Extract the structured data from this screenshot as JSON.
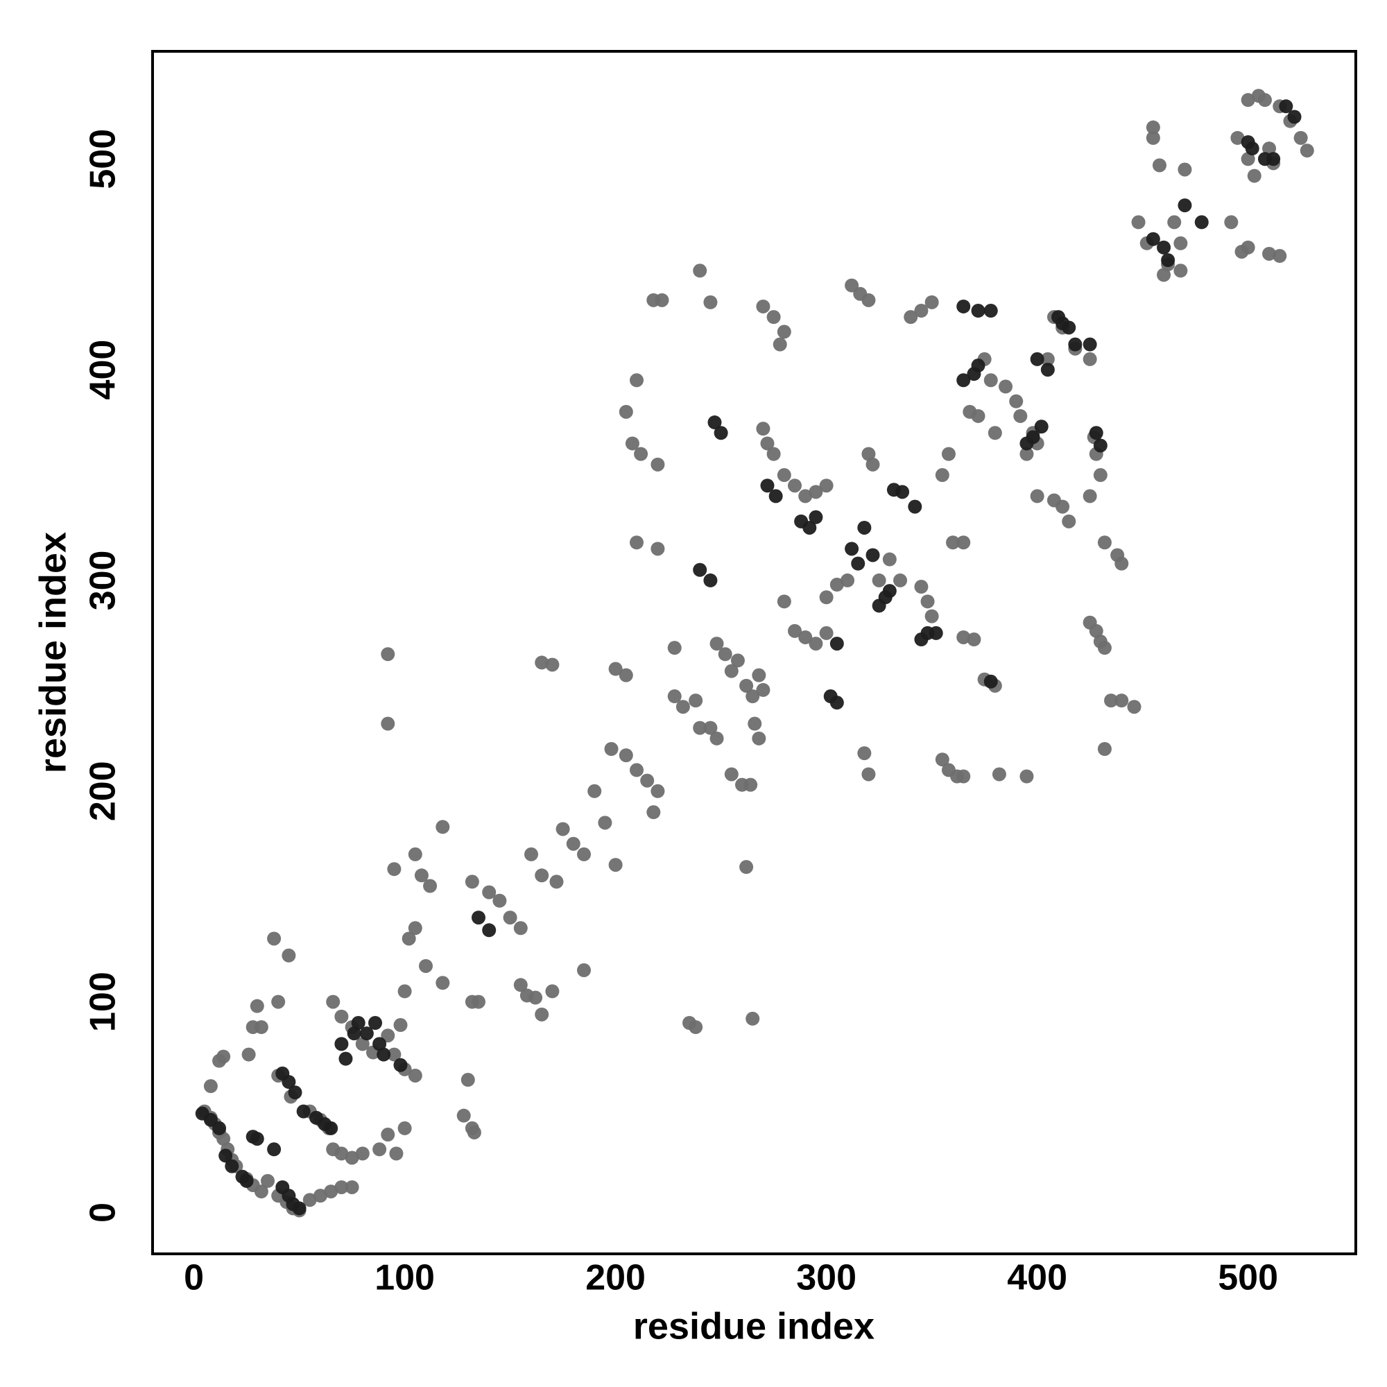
{
  "chart_data": {
    "type": "scatter",
    "xlabel": "residue index",
    "ylabel": "residue index",
    "xlim": [
      -19.6,
      551.1
    ],
    "ylim": [
      -19.6,
      551.1
    ],
    "xticks": [
      0,
      100,
      200,
      300,
      400,
      500
    ],
    "yticks": [
      0,
      100,
      200,
      300,
      400,
      500
    ],
    "series": [
      {
        "color": "#6e6e6e",
        "x": [
          5,
          8,
          10,
          12,
          14,
          16,
          18,
          20,
          25,
          28,
          32,
          35,
          40,
          44,
          47,
          50,
          55,
          60,
          65,
          70,
          75,
          8,
          12,
          14,
          26,
          28,
          32,
          30,
          40,
          38,
          45,
          40,
          46,
          55,
          60,
          64,
          66,
          70,
          75,
          80,
          88,
          92,
          96,
          100,
          100,
          105,
          66,
          70,
          75,
          80,
          85,
          92,
          95,
          98,
          92,
          92,
          100,
          102,
          105,
          108,
          112,
          105,
          110,
          118,
          118,
          95,
          128,
          132,
          133,
          130,
          132,
          135,
          132,
          140,
          145,
          150,
          155,
          155,
          158,
          162,
          165,
          170,
          160,
          165,
          172,
          165,
          170,
          175,
          180,
          185,
          185,
          190,
          195,
          198,
          200,
          205,
          210,
          215,
          220,
          218,
          205,
          208,
          210,
          212,
          220,
          220,
          222,
          218,
          210,
          200,
          205,
          228,
          228,
          232,
          238,
          240,
          245,
          248,
          240,
          245,
          248,
          252,
          255,
          258,
          262,
          265,
          268,
          270,
          255,
          260,
          264,
          262,
          266,
          268,
          235,
          238,
          265,
          270,
          272,
          275,
          270,
          275,
          280,
          278,
          280,
          285,
          290,
          295,
          300,
          280,
          285,
          290,
          295,
          300,
          300,
          305,
          310,
          312,
          316,
          320,
          318,
          320,
          320,
          322,
          325,
          330,
          335,
          345,
          350,
          348,
          355,
          358,
          362,
          365,
          365,
          370,
          375,
          380,
          382,
          395,
          340,
          345,
          350,
          355,
          358,
          360,
          365,
          368,
          372,
          375,
          378,
          380,
          385,
          390,
          392,
          398,
          395,
          400,
          400,
          408,
          412,
          415,
          405,
          408,
          412,
          418,
          425,
          425,
          428,
          430,
          432,
          425,
          430,
          432,
          438,
          440,
          432,
          435,
          440,
          446,
          427,
          428,
          448,
          452,
          455,
          455,
          458,
          460,
          462,
          465,
          468,
          470,
          468,
          492,
          497,
          500,
          495,
          500,
          503,
          510,
          512,
          500,
          505,
          508,
          515,
          520,
          525,
          528,
          510,
          515
        ],
        "y": [
          48,
          45,
          42,
          38,
          35,
          30,
          25,
          22,
          16,
          13,
          10,
          15,
          8,
          5,
          2,
          1,
          6,
          8,
          10,
          12,
          12,
          60,
          72,
          74,
          75,
          88,
          88,
          98,
          100,
          130,
          122,
          65,
          55,
          48,
          44,
          40,
          30,
          28,
          26,
          28,
          30,
          37,
          28,
          40,
          68,
          65,
          100,
          93,
          88,
          80,
          76,
          84,
          75,
          89,
          232,
          265,
          105,
          130,
          135,
          160,
          155,
          170,
          117,
          109,
          183,
          163,
          46,
          40,
          38,
          63,
          100,
          100,
          157,
          152,
          148,
          140,
          135,
          108,
          103,
          102,
          94,
          105,
          170,
          160,
          157,
          261,
          260,
          182,
          175,
          115,
          170,
          200,
          185,
          220,
          165,
          217,
          210,
          205,
          200,
          190,
          380,
          365,
          318,
          360,
          355,
          315,
          433,
          433,
          395,
          258,
          255,
          268,
          245,
          240,
          243,
          230,
          230,
          225,
          447,
          432,
          270,
          265,
          257,
          262,
          250,
          245,
          255,
          248,
          208,
          203,
          203,
          164,
          232,
          225,
          90,
          88,
          92,
          372,
          365,
          360,
          430,
          425,
          418,
          412,
          350,
          345,
          340,
          342,
          345,
          290,
          276,
          273,
          270,
          275,
          292,
          298,
          300,
          440,
          436,
          433,
          218,
          208,
          360,
          355,
          300,
          310,
          300,
          297,
          283,
          290,
          215,
          210,
          207,
          207,
          273,
          272,
          253,
          250,
          208,
          207,
          425,
          428,
          432,
          350,
          360,
          318,
          318,
          380,
          378,
          405,
          395,
          370,
          392,
          385,
          378,
          370,
          360,
          365,
          340,
          338,
          335,
          328,
          405,
          425,
          420,
          410,
          405,
          280,
          276,
          271,
          268,
          340,
          350,
          318,
          312,
          308,
          220,
          243,
          243,
          240,
          368,
          360,
          470,
          460,
          510,
          515,
          497,
          445,
          450,
          470,
          447,
          495,
          460,
          470,
          456,
          458,
          510,
          500,
          492,
          505,
          498,
          528,
          530,
          528,
          525,
          518,
          510,
          504,
          455,
          454
        ]
      },
      {
        "color": "#1e1e1e",
        "x": [
          4,
          8,
          12,
          15,
          18,
          23,
          25,
          28,
          30,
          38,
          42,
          45,
          47,
          50,
          42,
          45,
          48,
          52,
          58,
          62,
          65,
          70,
          72,
          76,
          78,
          82,
          86,
          88,
          90,
          98,
          135,
          140,
          247,
          250,
          240,
          245,
          272,
          276,
          288,
          292,
          295,
          305,
          302,
          305,
          312,
          315,
          318,
          322,
          325,
          328,
          330,
          332,
          336,
          342,
          345,
          348,
          352,
          365,
          370,
          372,
          365,
          372,
          378,
          378,
          395,
          398,
          402,
          400,
          405,
          410,
          412,
          415,
          418,
          425,
          428,
          430,
          455,
          460,
          462,
          470,
          478,
          500,
          502,
          508,
          512,
          518,
          522
        ],
        "y": [
          47,
          44,
          40,
          27,
          22,
          17,
          15,
          36,
          35,
          30,
          12,
          8,
          4,
          2,
          66,
          62,
          57,
          48,
          45,
          42,
          40,
          80,
          73,
          85,
          90,
          85,
          90,
          80,
          75,
          70,
          140,
          134,
          375,
          370,
          305,
          300,
          345,
          340,
          328,
          325,
          330,
          270,
          245,
          242,
          315,
          308,
          325,
          312,
          288,
          292,
          295,
          343,
          342,
          335,
          272,
          275,
          275,
          395,
          398,
          402,
          430,
          428,
          428,
          252,
          365,
          368,
          373,
          405,
          400,
          425,
          422,
          420,
          412,
          412,
          370,
          364,
          462,
          458,
          452,
          478,
          470,
          508,
          505,
          500,
          500,
          525,
          520
        ]
      }
    ]
  }
}
